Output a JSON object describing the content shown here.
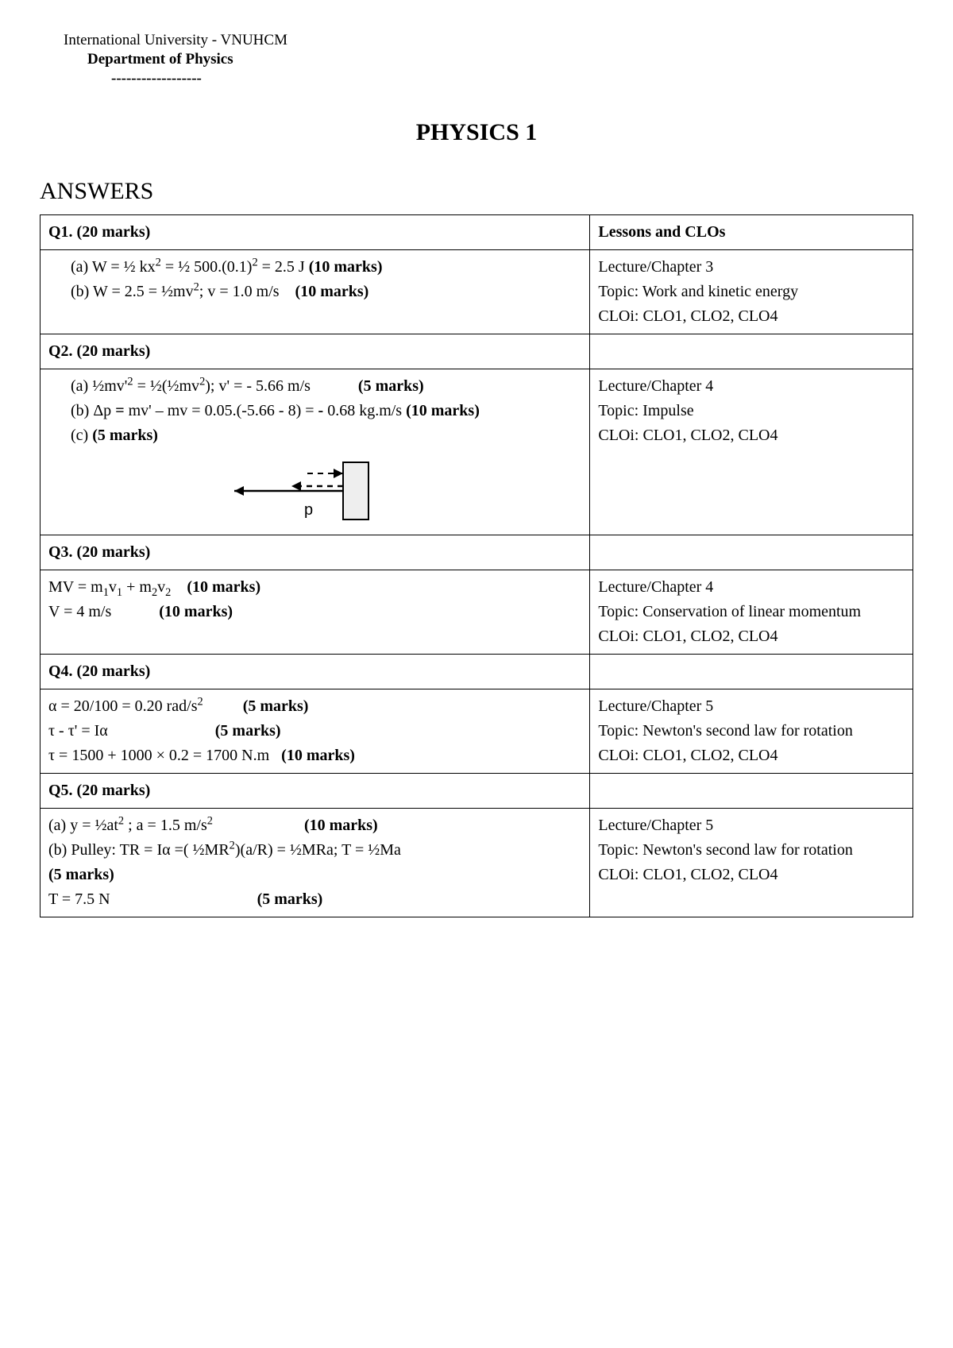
{
  "header": {
    "university": "International University - VNUHCM",
    "department": "Department of Physics",
    "dashes": "------------------"
  },
  "title": "PHYSICS 1",
  "section_heading": "ANSWERS",
  "table": {
    "header_right": "Lessons and CLOs",
    "rows": [
      {
        "q_label": "Q1. (20 marks)",
        "left_html": "<span class='indent'>(a)  W = ½ kx<sup>2</sup> = ½ 500.(0.1)<sup>2</sup> = 2.5 J <span class='bold'>(10 marks)</span></span><span class='indent'>(b) W = 2.5 = ½mv<sup>2</sup>; v = 1.0 m/s &nbsp;&nbsp; <span class='bold'>(10 marks)</span></span>",
        "right_html": "Lecture/Chapter 3<br>Topic: Work and kinetic energy<br>CLOi: CLO1, CLO2, CLO4"
      },
      {
        "q_label": "Q2. (20 marks)",
        "left_html": "<span class='indent'>(a)  ½mv'<sup>2</sup> = ½(½mv<sup>2</sup>); v' = - 5.66 m/s &nbsp;&nbsp;&nbsp;&nbsp;&nbsp;&nbsp;&nbsp;&nbsp;&nbsp;&nbsp; <span class='bold'>(5 marks)</span></span><span class='indent'>(b) Δp <span class='bold'>=</span> mv' – mv = 0.05.(-5.66 - 8) = <span class='bold'>-</span> 0.68 kg.m/s <span class='bold'>(10 marks)</span></span><span class='indent'>(c) <span class='bold'>(5 marks)</span></span><svg class='diagram' width='260' height='95' viewBox='0 0 260 95'><line x1='28' y1='48' x2='165' y2='48' stroke='#000' stroke-width='2.5'/><polygon points='28,48 40,42 40,54' fill='#000'/><line x1='165' y1='42' x2='100' y2='42' stroke='#000' stroke-width='2.5' stroke-dasharray='7,6'/><polygon points='100,42 112,36 112,48' fill='#000'/><line x1='120' y1='26' x2='165' y2='26' stroke='#000' stroke-width='2' stroke-dasharray='7,6'/><polygon points='165,26 153,20 153,32' fill='#000'/><rect x='165' y='12' width='32' height='72' fill='#eeeeee' stroke='#000' stroke-width='2'/><text x='116' y='78' font-family='Arial,Helvetica,sans-serif' font-size='20' fill='#000'>p</text></svg>",
        "right_html": "Lecture/Chapter 4<br>Topic: Impulse<br>CLOi: CLO1, CLO2, CLO4"
      },
      {
        "q_label": "Q3. (20 marks)",
        "left_html": "MV = m<sub>1</sub>v<sub>1</sub> + m<sub>2</sub>v<sub>2</sub> &nbsp;&nbsp; <span class='bold'>(10 marks)</span><br>V = 4 m/s &nbsp;&nbsp;&nbsp;&nbsp;&nbsp;&nbsp;&nbsp;&nbsp;&nbsp;&nbsp; <span class='bold'>(10 marks)</span>",
        "right_html": "<div class='justify'>Lecture/Chapter 4<br>Topic: Conservation of linear momentum<br>CLOi: CLO1, CLO2, CLO4</div>"
      },
      {
        "q_label": "Q4. (20 marks)",
        "left_html": "α = 20/100 = 0.20 rad/s<sup>2</sup> &nbsp;&nbsp;&nbsp;&nbsp;&nbsp;&nbsp;&nbsp;&nbsp; <span class='bold'>(5 marks)</span><br>τ - τ' = Iα &nbsp;&nbsp;&nbsp;&nbsp;&nbsp;&nbsp;&nbsp;&nbsp;&nbsp;&nbsp;&nbsp;&nbsp;&nbsp;&nbsp;&nbsp;&nbsp;&nbsp;&nbsp;&nbsp;&nbsp;&nbsp;&nbsp;&nbsp;&nbsp;&nbsp; <span class='bold'>(5 marks)</span><br>τ = 1500 + 1000 × 0.2 = 1700 N.m &nbsp; <span class='bold'>(10 marks)</span>",
        "right_html": "<div class='justify'>Lecture/Chapter 5<br>Topic: Newton's second law for rotation<br>CLOi: CLO1, CLO2, CLO4</div>"
      },
      {
        "q_label": "Q5. (20 marks)",
        "left_html": "(a) y = ½at<sup>2</sup> ; a = 1.5 m/s<sup>2</sup> &nbsp;&nbsp;&nbsp;&nbsp;&nbsp;&nbsp;&nbsp;&nbsp;&nbsp;&nbsp;&nbsp;&nbsp;&nbsp;&nbsp;&nbsp;&nbsp;&nbsp;&nbsp;&nbsp;&nbsp;&nbsp; <span class='bold'>(10 marks)</span><br>(b) Pulley: TR = Iα =( ½MR<sup>2</sup>)(a/R) = ½MRa; T = ½Ma<br><span class='bold'>(5 marks)</span><br>T = 7.5 N &nbsp;&nbsp;&nbsp;&nbsp;&nbsp;&nbsp;&nbsp;&nbsp;&nbsp;&nbsp;&nbsp;&nbsp;&nbsp;&nbsp;&nbsp;&nbsp;&nbsp;&nbsp;&nbsp;&nbsp;&nbsp;&nbsp;&nbsp;&nbsp;&nbsp;&nbsp;&nbsp;&nbsp;&nbsp;&nbsp;&nbsp;&nbsp;&nbsp;&nbsp;&nbsp; <span class='bold'>(5 marks)</span>",
        "right_html": "<div class='justify'>Lecture/Chapter 5<br>Topic: Newton's second law for rotation<br>CLOi: CLO1, CLO2, CLO4</div>"
      }
    ]
  }
}
